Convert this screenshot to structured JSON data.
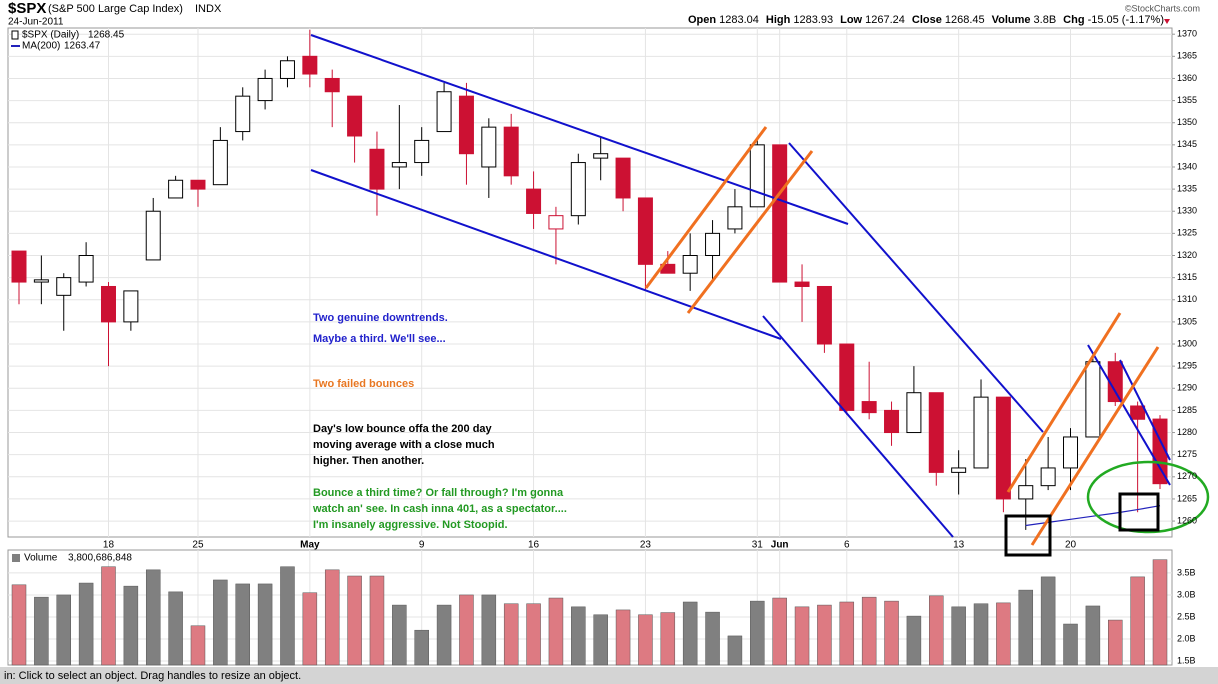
{
  "header": {
    "symbol": "$SPX",
    "name": "(S&P 500 Large Cap Index)",
    "exchange": "INDX",
    "date": "24-Jun-2011",
    "source": "©StockCharts.com",
    "quote": [
      {
        "label": "Open",
        "value": "1283.04"
      },
      {
        "label": "High",
        "value": "1283.93"
      },
      {
        "label": "Low",
        "value": "1267.24"
      },
      {
        "label": "Close",
        "value": "1268.45"
      },
      {
        "label": "Volume",
        "value": "3.8B"
      },
      {
        "label": "Chg",
        "value": "-15.05 (-1.17%)"
      }
    ]
  },
  "chart_data": [
    {
      "type": "candlestick",
      "name": "$SPX (Daily)",
      "last": "1268.45",
      "categories": [
        null,
        null,
        null,
        null,
        "18",
        null,
        null,
        null,
        "25",
        null,
        null,
        null,
        null,
        "May",
        null,
        null,
        null,
        null,
        "9",
        null,
        null,
        null,
        null,
        "16",
        null,
        null,
        null,
        null,
        "23",
        null,
        null,
        null,
        null,
        "31",
        "Jun",
        null,
        null,
        "6",
        null,
        null,
        null,
        null,
        "13",
        null,
        null,
        null,
        null,
        "20",
        null,
        null,
        null,
        null
      ],
      "open": [
        1321,
        1314,
        1311,
        1314,
        1313,
        1305,
        1319,
        1333,
        1337,
        1336,
        1348,
        1355,
        1360,
        1365,
        1360,
        1356,
        1344,
        1340,
        1341,
        1348,
        1356,
        1340,
        1349,
        1335,
        1326,
        1329,
        1342,
        1342,
        1333,
        1318,
        1316,
        1320,
        1326,
        1331,
        1345,
        1314,
        1313,
        1300,
        1287,
        1285,
        1280,
        1289,
        1271,
        1272,
        1288,
        1265,
        1268,
        1272,
        1279,
        1296,
        1286,
        1283.04
      ],
      "high": [
        1321,
        1320,
        1316,
        1323,
        1314,
        1312,
        1333,
        1338,
        1337,
        1349,
        1358,
        1362,
        1365,
        1371,
        1362,
        1356,
        1348,
        1354,
        1349,
        1359,
        1359,
        1351,
        1352,
        1339,
        1331,
        1343,
        1347,
        1342,
        1333,
        1321,
        1325,
        1328,
        1335,
        1346,
        1345,
        1318,
        1313,
        1300,
        1296,
        1287,
        1295,
        1289,
        1276,
        1292,
        1288,
        1274,
        1279,
        1281,
        1298,
        1298,
        1287,
        1283.93
      ],
      "low": [
        1309,
        1309,
        1303,
        1313,
        1295,
        1303,
        1319,
        1333,
        1331,
        1336,
        1346,
        1353,
        1358,
        1358,
        1349,
        1341,
        1329,
        1335,
        1338,
        1348,
        1336,
        1333,
        1336,
        1326,
        1318,
        1327,
        1337,
        1330,
        1312,
        1316,
        1312,
        1314,
        1325,
        1331,
        1314,
        1305,
        1298,
        1284,
        1283,
        1277,
        1280,
        1268,
        1266,
        1272,
        1262,
        1258,
        1267,
        1267,
        1279,
        1286,
        1262,
        1267.24
      ],
      "close": [
        1314,
        1314.5,
        1315,
        1320,
        1305,
        1312,
        1330,
        1337,
        1335,
        1346,
        1356,
        1360,
        1364,
        1361,
        1357,
        1347,
        1335,
        1341,
        1346,
        1357,
        1343,
        1349,
        1338,
        1329.5,
        1329,
        1341,
        1343,
        1333,
        1318,
        1316,
        1320,
        1325,
        1331,
        1345,
        1314,
        1313,
        1300,
        1285,
        1284.5,
        1280,
        1289,
        1271,
        1272,
        1288,
        1265,
        1268,
        1272,
        1279,
        1296,
        1287,
        1283,
        1268.45
      ],
      "up_color": "#000000",
      "down_color": "#cc1133",
      "ma": {
        "name": "MA(200)",
        "last": "1263.47",
        "color": "#2222bb",
        "values": [
          null,
          null,
          null,
          null,
          null,
          null,
          null,
          null,
          null,
          null,
          null,
          null,
          null,
          null,
          null,
          null,
          null,
          null,
          null,
          null,
          null,
          null,
          null,
          null,
          null,
          null,
          null,
          null,
          null,
          null,
          null,
          null,
          null,
          null,
          null,
          null,
          null,
          null,
          null,
          null,
          null,
          null,
          null,
          null,
          null,
          1259,
          1259.7,
          1260.4,
          1261.1,
          1261.8,
          1262.6,
          1263.47
        ]
      },
      "ylim": [
        1256.4,
        1371.4
      ],
      "yticks": [
        1260,
        1265,
        1270,
        1275,
        1280,
        1285,
        1290,
        1295,
        1300,
        1305,
        1310,
        1315,
        1320,
        1325,
        1330,
        1335,
        1340,
        1345,
        1350,
        1355,
        1360,
        1365,
        1370
      ],
      "grid": true,
      "annotations": [
        {
          "text": "Two genuine downtrends.",
          "color": "#2222cc"
        },
        {
          "text": "Maybe a third. We'll see...",
          "color": "#2222cc"
        },
        {
          "text": "Two failed bounces",
          "color": "#e87722"
        },
        {
          "text": "Day's low bounce offa the 200 day",
          "color": "#000000"
        },
        {
          "text": "moving average with a close much",
          "color": "#000000"
        },
        {
          "text": "higher. Then another.",
          "color": "#000000"
        },
        {
          "text": "Bounce a third time? Or fall through? I'm gonna",
          "color": "#229922"
        },
        {
          "text": "watch an' see. In cash inna 401, as a spectator....",
          "color": "#229922"
        },
        {
          "text": "I'm insanely aggressive. Not Stoopid.",
          "color": "#229922"
        }
      ]
    },
    {
      "type": "bar",
      "name": "Volume",
      "last": "3,800,686,848",
      "values": [
        3.23,
        2.95,
        3.0,
        3.27,
        3.64,
        3.2,
        3.57,
        3.07,
        2.3,
        3.34,
        3.25,
        3.25,
        3.64,
        3.05,
        3.57,
        3.43,
        3.43,
        2.77,
        2.2,
        2.77,
        3.0,
        3.0,
        2.8,
        2.8,
        2.93,
        2.73,
        2.55,
        2.66,
        2.55,
        2.6,
        2.84,
        2.61,
        2.07,
        2.86,
        2.93,
        2.73,
        2.77,
        2.84,
        2.95,
        2.86,
        2.52,
        2.98,
        2.73,
        2.8,
        2.82,
        3.11,
        3.41,
        2.34,
        2.75,
        2.43,
        3.41,
        3.8
      ],
      "ylim": [
        1.41,
        4.02
      ],
      "yticks": [
        {
          "value": 1.5,
          "label": "1.5B"
        },
        {
          "value": 2.0,
          "label": "2.0B"
        },
        {
          "value": 2.5,
          "label": "2.5B"
        },
        {
          "value": 3.0,
          "label": "3.0B"
        },
        {
          "value": 3.5,
          "label": "3.5B"
        }
      ],
      "up_color": "#808080",
      "down_color": "#dd7a82"
    }
  ],
  "status": "in: Click to select an object. Drag handles to resize an object."
}
